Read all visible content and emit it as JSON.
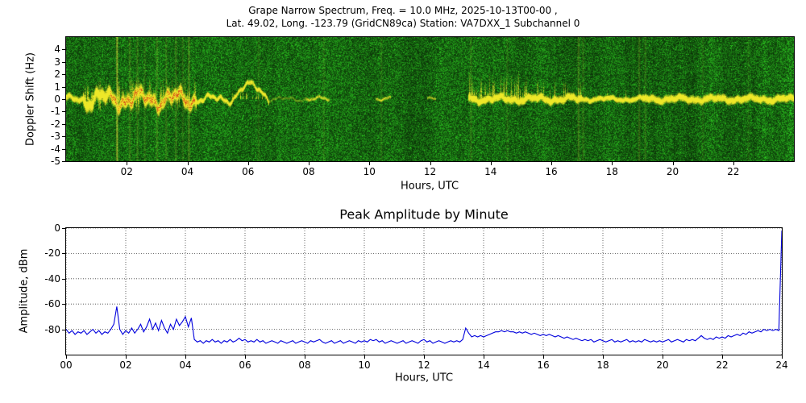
{
  "figure": {
    "suptitle_line1": "Grape Narrow Spectrum, Freq. = 10.0 MHz, 2025-10-13T00-00 ,",
    "suptitle_line2": "Lat.  49.02, Long. -123.79 (GridCN89ca) Station: VA7DXX_1 Subchannel 0"
  },
  "chart_data": [
    {
      "type": "heatmap",
      "name": "doppler-spectrogram",
      "xlabel": "Hours, UTC",
      "ylabel": "Doppler Shift (Hz)",
      "xlim": [
        0,
        24
      ],
      "ylim": [
        -5,
        5
      ],
      "xticks": [
        "02",
        "04",
        "06",
        "08",
        "10",
        "12",
        "14",
        "16",
        "18",
        "20",
        "22"
      ],
      "yticks": [
        "4",
        "3",
        "2",
        "1",
        "0",
        "-1",
        "-2",
        "-3",
        "-4",
        "-5"
      ],
      "colormap": {
        "background_green": "#1c741c",
        "band_yellow": "#e8e832",
        "hot_core_red": "#cc4412"
      },
      "band_segments": [
        [
          0.0,
          0.55,
          0.85,
          0.18,
          0.15
        ],
        [
          0.55,
          4.3,
          1.0,
          0.34,
          0.45
        ],
        [
          4.3,
          5.5,
          0.85,
          0.14,
          0.22
        ],
        [
          5.5,
          6.7,
          0.8,
          0.14,
          0.2
        ],
        [
          6.7,
          7.9,
          0.3,
          0.1,
          0.12
        ],
        [
          7.9,
          8.7,
          0.55,
          0.1,
          0.12
        ],
        [
          10.2,
          10.7,
          0.5,
          0.1,
          0.1
        ],
        [
          11.9,
          12.2,
          0.45,
          0.09,
          0.08
        ],
        [
          13.25,
          17.0,
          1.0,
          0.2,
          0.15
        ],
        [
          17.0,
          19.0,
          0.9,
          0.15,
          0.1
        ],
        [
          19.0,
          24.01,
          0.95,
          0.2,
          0.12
        ]
      ],
      "arcs": [
        [
          5.5,
          6.7,
          1.1
        ]
      ],
      "red_interval": [
        1.45,
        4.25
      ],
      "spike_regions": [
        [
          0.6,
          4.3,
          0.45,
          1.9,
          "both"
        ],
        [
          5.4,
          6.6,
          0.15,
          0.7,
          "up"
        ],
        [
          13.3,
          15.3,
          0.5,
          2.3,
          "up"
        ],
        [
          15.3,
          17.0,
          0.3,
          1.7,
          "up"
        ],
        [
          17.0,
          18.6,
          0.1,
          0.9,
          "up"
        ],
        [
          19.5,
          24.0,
          0.12,
          0.5,
          "both"
        ]
      ],
      "stripes": [
        [
          1.68,
          1.0
        ],
        [
          2.1,
          0.3
        ],
        [
          2.35,
          0.25
        ],
        [
          2.6,
          0.2
        ],
        [
          3.0,
          0.3
        ],
        [
          3.3,
          0.25
        ],
        [
          3.62,
          0.3
        ],
        [
          3.85,
          0.22
        ],
        [
          4.05,
          0.42
        ],
        [
          6.35,
          0.15
        ],
        [
          8.5,
          0.15
        ],
        [
          10.4,
          0.15
        ],
        [
          13.35,
          0.2
        ],
        [
          14.55,
          0.15
        ],
        [
          16.9,
          0.35
        ],
        [
          17.05,
          0.2
        ],
        [
          18.9,
          0.3
        ],
        [
          19.1,
          0.2
        ],
        [
          21.0,
          0.12
        ],
        [
          22.5,
          0.1
        ]
      ]
    },
    {
      "type": "line",
      "name": "peak-amplitude-by-minute",
      "title": "Peak Amplitude by Minute",
      "xlabel": "Hours, UTC",
      "ylabel": "Amplitude, dBm",
      "xlim": [
        0,
        24
      ],
      "ylim": [
        -100,
        0
      ],
      "xticks": [
        "00",
        "02",
        "04",
        "06",
        "08",
        "10",
        "12",
        "14",
        "16",
        "18",
        "20",
        "22",
        "24"
      ],
      "yticks": [
        "0",
        "-20",
        "-40",
        "-60",
        "-80"
      ],
      "grid": true,
      "line_color": "#0000dd",
      "x_start": 0,
      "x_step": 0.1,
      "values": [
        -80,
        -83,
        -81,
        -84,
        -82,
        -83,
        -81,
        -84,
        -82,
        -80,
        -83,
        -81,
        -84,
        -82,
        -83,
        -80,
        -76,
        -62,
        -80,
        -84,
        -81,
        -83,
        -79,
        -83,
        -80,
        -76,
        -82,
        -78,
        -72,
        -80,
        -75,
        -81,
        -73,
        -79,
        -83,
        -76,
        -80,
        -72,
        -77,
        -74,
        -70,
        -78,
        -71,
        -88,
        -90,
        -89,
        -91,
        -89,
        -90,
        -88,
        -90,
        -89,
        -91,
        -89,
        -90,
        -88,
        -90,
        -89,
        -87,
        -89,
        -88,
        -90,
        -89,
        -90,
        -88,
        -90,
        -89,
        -91,
        -90,
        -89,
        -90,
        -91,
        -89,
        -90,
        -91,
        -90,
        -89,
        -91,
        -90,
        -89,
        -90,
        -91,
        -89,
        -90,
        -89,
        -88,
        -90,
        -91,
        -90,
        -89,
        -91,
        -90,
        -89,
        -91,
        -90,
        -89,
        -90,
        -91,
        -89,
        -90,
        -89,
        -90,
        -88,
        -89,
        -88,
        -90,
        -89,
        -91,
        -90,
        -89,
        -90,
        -91,
        -90,
        -89,
        -91,
        -90,
        -89,
        -90,
        -91,
        -89,
        -88,
        -90,
        -89,
        -91,
        -90,
        -89,
        -90,
        -91,
        -90,
        -89,
        -90,
        -89,
        -90,
        -88,
        -79,
        -83,
        -86,
        -85,
        -86,
        -85,
        -86,
        -85,
        -84,
        -83,
        -82,
        -82,
        -81,
        -82,
        -81,
        -82,
        -82,
        -83,
        -82,
        -83,
        -82,
        -83,
        -84,
        -83,
        -84,
        -85,
        -84,
        -85,
        -84,
        -85,
        -86,
        -85,
        -86,
        -87,
        -86,
        -87,
        -88,
        -87,
        -88,
        -89,
        -88,
        -89,
        -88,
        -90,
        -89,
        -88,
        -89,
        -90,
        -89,
        -88,
        -90,
        -89,
        -90,
        -89,
        -88,
        -90,
        -89,
        -90,
        -89,
        -90,
        -88,
        -89,
        -90,
        -89,
        -90,
        -89,
        -90,
        -89,
        -88,
        -90,
        -89,
        -88,
        -89,
        -90,
        -88,
        -89,
        -88,
        -89,
        -87,
        -85,
        -87,
        -88,
        -87,
        -88,
        -86,
        -87,
        -86,
        -87,
        -85,
        -86,
        -85,
        -84,
        -85,
        -83,
        -84,
        -82,
        -83,
        -82,
        -81,
        -82,
        -80,
        -81,
        -80,
        -81,
        -80,
        -81,
        -2
      ]
    }
  ]
}
